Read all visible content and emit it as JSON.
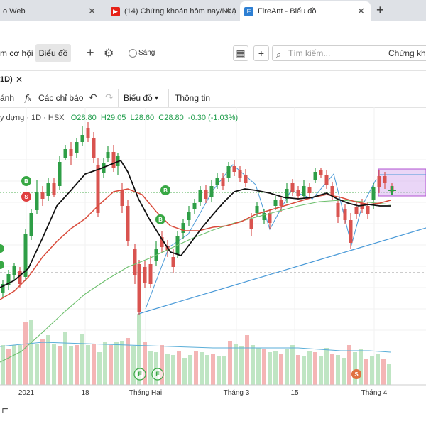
{
  "browser": {
    "tabs": [
      {
        "title": "o Web",
        "active": false
      },
      {
        "title": "(14) Chứng khoán hôm nay/Nhậ",
        "active": false
      },
      {
        "title": "FireAnt - Biểu đồ",
        "active": true
      }
    ],
    "new_tab_label": "+"
  },
  "app_toolbar": {
    "nav_left": "m cơ hội",
    "chart_button": "Biểu đồ",
    "theme_toggle_label": "Sáng",
    "search_placeholder": "Tìm kiếm...",
    "right_label": "Chứng kho"
  },
  "chart_tab": {
    "label": "1D)",
    "close": "✕"
  },
  "chart_toolbar": {
    "compare": "ánh",
    "indicators": "Các chỉ báo",
    "chart_type": "Biểu đồ",
    "info": "Thông tin"
  },
  "symbol_legend": {
    "name": "y dựng · 1D · HSX",
    "open": "O28.80",
    "high": "H29.05",
    "low": "L28.60",
    "close": "C28.80",
    "change": "-0.30 (-1.03%)"
  },
  "chart_data": {
    "type": "candlestick",
    "x_tick_labels": [
      "2021",
      "18",
      "Tháng Hai",
      "Tháng 3",
      "15",
      "Tháng 4"
    ],
    "markers": [
      {
        "text": "B",
        "color": "#38a844"
      },
      {
        "text": "S",
        "color": "#e04040"
      },
      {
        "text": "B",
        "color": "#38a844"
      },
      {
        "text": "B",
        "color": "#38a844"
      },
      {
        "text": "F",
        "color": "#38a844"
      },
      {
        "text": "F",
        "color": "#38a844"
      },
      {
        "text": "S",
        "color": "#e07040"
      }
    ],
    "colors": {
      "up": "#2e9e46",
      "down": "#d9534f",
      "ma_fast": "#111111",
      "ma_mid": "#d94a3a",
      "ma_slow": "#6cbf6c",
      "trend": "#4a9ad8"
    }
  }
}
